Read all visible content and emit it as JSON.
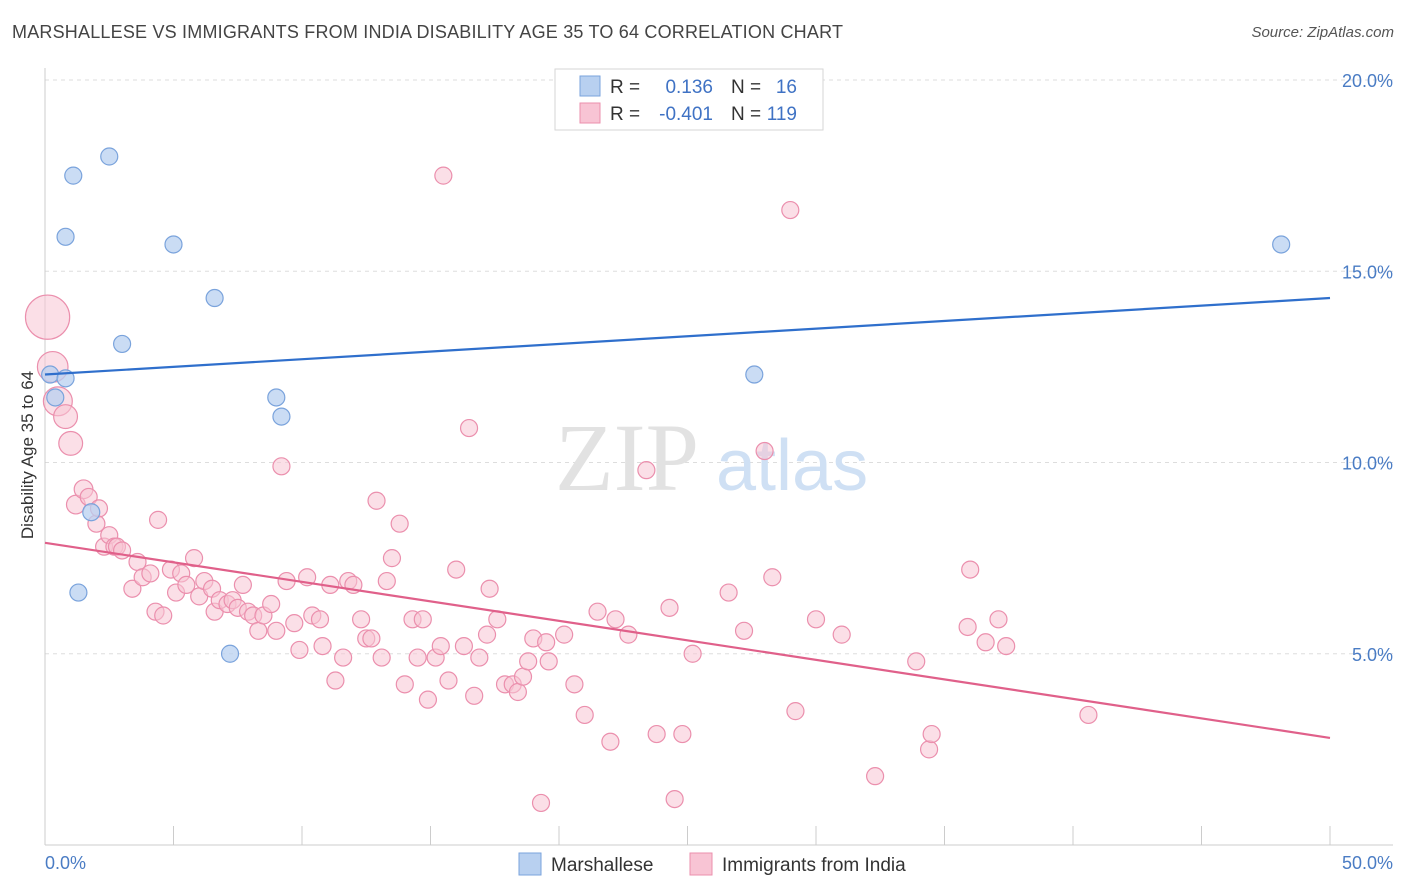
{
  "title": "MARSHALLESE VS IMMIGRANTS FROM INDIA DISABILITY AGE 35 TO 64 CORRELATION CHART",
  "source": "Source: ZipAtlas.com",
  "watermark": {
    "zip": "ZIP",
    "atlas": "atlas"
  },
  "legend_top": [
    {
      "r_label": "R =",
      "r_value": "0.136",
      "n_label": "N =",
      "n_value": "16"
    },
    {
      "r_label": "R =",
      "r_value": "-0.401",
      "n_label": "N =",
      "n_value": "119"
    }
  ],
  "legend_bottom": [
    "Marshallese",
    "Immigrants from India"
  ],
  "colors": {
    "blue_fill": "#b8d0f0",
    "blue_stroke": "#7aa3dc",
    "blue_line": "#2f6fcc",
    "pink_fill": "#f8c4d4",
    "pink_stroke": "#eb8fad",
    "pink_line": "#e0608a",
    "grid": "#dddddd",
    "tick_text": "#4a7cc4"
  },
  "chart_data": {
    "type": "scatter",
    "xlabel": "",
    "ylabel": "Disability Age 35 to 64",
    "xlim": [
      0,
      50
    ],
    "ylim": [
      0,
      20
    ],
    "x_tick_labels": [
      "0.0%",
      "50.0%"
    ],
    "y_ticks": [
      5,
      10,
      15,
      20
    ],
    "y_tick_labels": [
      "5.0%",
      "10.0%",
      "15.0%",
      "20.0%"
    ],
    "grid": "horizontal dashed",
    "legend": "top-center",
    "series": [
      {
        "name": "Marshallese",
        "color": "#b8d0f0",
        "points": [
          [
            0.2,
            12.3,
            1
          ],
          [
            0.4,
            11.7,
            1
          ],
          [
            0.8,
            12.2,
            1
          ],
          [
            0.8,
            15.9,
            1
          ],
          [
            1.1,
            17.5,
            1
          ],
          [
            1.3,
            6.6,
            1
          ],
          [
            1.8,
            8.7,
            1
          ],
          [
            2.5,
            18.0,
            1
          ],
          [
            3.0,
            13.1,
            1
          ],
          [
            5.0,
            15.7,
            1
          ],
          [
            6.6,
            14.3,
            1
          ],
          [
            7.2,
            5.0,
            1
          ],
          [
            9.0,
            11.7,
            1
          ],
          [
            9.2,
            11.2,
            1
          ],
          [
            27.6,
            12.3,
            1
          ],
          [
            48.1,
            15.7,
            1
          ]
        ]
      },
      {
        "name": "Immigrants from India",
        "color": "#f8c4d4",
        "points": [
          [
            0.1,
            13.8,
            2.6
          ],
          [
            0.3,
            12.5,
            1.8
          ],
          [
            0.5,
            11.6,
            1.7
          ],
          [
            0.8,
            11.2,
            1.4
          ],
          [
            1.0,
            10.5,
            1.4
          ],
          [
            1.2,
            8.9,
            1.1
          ],
          [
            1.5,
            9.3,
            1.1
          ],
          [
            1.7,
            9.1,
            1
          ],
          [
            2.0,
            8.4,
            1
          ],
          [
            2.1,
            8.8,
            1
          ],
          [
            2.3,
            7.8,
            1
          ],
          [
            2.5,
            8.1,
            1
          ],
          [
            2.7,
            7.8,
            1
          ],
          [
            2.8,
            7.8,
            1
          ],
          [
            3.0,
            7.7,
            1
          ],
          [
            3.4,
            6.7,
            1
          ],
          [
            3.6,
            7.4,
            1
          ],
          [
            3.8,
            7.0,
            1
          ],
          [
            4.1,
            7.1,
            1
          ],
          [
            4.3,
            6.1,
            1
          ],
          [
            4.4,
            8.5,
            1
          ],
          [
            4.6,
            6.0,
            1
          ],
          [
            4.9,
            7.2,
            1
          ],
          [
            5.1,
            6.6,
            1
          ],
          [
            5.3,
            7.1,
            1
          ],
          [
            5.5,
            6.8,
            1
          ],
          [
            5.8,
            7.5,
            1
          ],
          [
            6.0,
            6.5,
            1
          ],
          [
            6.2,
            6.9,
            1
          ],
          [
            6.5,
            6.7,
            1
          ],
          [
            6.6,
            6.1,
            1
          ],
          [
            6.8,
            6.4,
            1
          ],
          [
            7.1,
            6.3,
            1
          ],
          [
            7.3,
            6.4,
            1
          ],
          [
            7.5,
            6.2,
            1
          ],
          [
            7.7,
            6.8,
            1
          ],
          [
            7.9,
            6.1,
            1
          ],
          [
            8.1,
            6.0,
            1
          ],
          [
            8.3,
            5.6,
            1
          ],
          [
            8.5,
            6.0,
            1
          ],
          [
            8.8,
            6.3,
            1
          ],
          [
            9.0,
            5.6,
            1
          ],
          [
            9.2,
            9.9,
            1
          ],
          [
            9.4,
            6.9,
            1
          ],
          [
            9.7,
            5.8,
            1
          ],
          [
            9.9,
            5.1,
            1
          ],
          [
            10.2,
            7.0,
            1
          ],
          [
            10.4,
            6.0,
            1
          ],
          [
            10.7,
            5.9,
            1
          ],
          [
            10.8,
            5.2,
            1
          ],
          [
            11.1,
            6.8,
            1
          ],
          [
            11.3,
            4.3,
            1
          ],
          [
            11.6,
            4.9,
            1
          ],
          [
            11.8,
            6.9,
            1
          ],
          [
            12.0,
            6.8,
            1
          ],
          [
            12.3,
            5.9,
            1
          ],
          [
            12.5,
            5.4,
            1
          ],
          [
            12.7,
            5.4,
            1
          ],
          [
            12.9,
            9.0,
            1
          ],
          [
            13.1,
            4.9,
            1
          ],
          [
            13.3,
            6.9,
            1
          ],
          [
            13.5,
            7.5,
            1
          ],
          [
            13.8,
            8.4,
            1
          ],
          [
            14.0,
            4.2,
            1
          ],
          [
            14.3,
            5.9,
            1
          ],
          [
            14.5,
            4.9,
            1
          ],
          [
            14.7,
            5.9,
            1
          ],
          [
            14.9,
            3.8,
            1
          ],
          [
            15.2,
            4.9,
            1
          ],
          [
            15.4,
            5.2,
            1
          ],
          [
            15.5,
            17.5,
            1
          ],
          [
            15.7,
            4.3,
            1
          ],
          [
            16.0,
            7.2,
            1
          ],
          [
            16.3,
            5.2,
            1
          ],
          [
            16.5,
            10.9,
            1
          ],
          [
            16.7,
            3.9,
            1
          ],
          [
            16.9,
            4.9,
            1
          ],
          [
            17.2,
            5.5,
            1
          ],
          [
            17.3,
            6.7,
            1
          ],
          [
            17.6,
            5.9,
            1
          ],
          [
            17.9,
            4.2,
            1
          ],
          [
            18.2,
            4.2,
            1
          ],
          [
            18.4,
            4.0,
            1
          ],
          [
            18.6,
            4.4,
            1
          ],
          [
            18.8,
            4.8,
            1
          ],
          [
            19.0,
            5.4,
            1
          ],
          [
            19.5,
            5.3,
            1
          ],
          [
            19.6,
            4.8,
            1
          ],
          [
            19.3,
            1.1,
            1
          ],
          [
            20.2,
            5.5,
            1
          ],
          [
            20.6,
            4.2,
            1
          ],
          [
            21.0,
            3.4,
            1
          ],
          [
            21.5,
            6.1,
            1
          ],
          [
            22.0,
            2.7,
            1
          ],
          [
            22.2,
            5.9,
            1
          ],
          [
            22.7,
            5.5,
            1
          ],
          [
            23.4,
            9.8,
            1
          ],
          [
            23.8,
            2.9,
            1
          ],
          [
            24.3,
            6.2,
            1
          ],
          [
            24.5,
            1.2,
            1
          ],
          [
            24.8,
            2.9,
            1
          ],
          [
            25.2,
            5.0,
            1
          ],
          [
            26.6,
            6.6,
            1
          ],
          [
            27.2,
            5.6,
            1
          ],
          [
            28.0,
            10.3,
            1
          ],
          [
            28.3,
            7.0,
            1
          ],
          [
            29.0,
            16.6,
            1
          ],
          [
            29.2,
            3.5,
            1
          ],
          [
            30.0,
            5.9,
            1
          ],
          [
            31.0,
            5.5,
            1
          ],
          [
            32.3,
            1.8,
            1
          ],
          [
            33.9,
            4.8,
            1
          ],
          [
            34.4,
            2.5,
            1
          ],
          [
            34.5,
            2.9,
            1
          ],
          [
            35.9,
            5.7,
            1
          ],
          [
            36.0,
            7.2,
            1
          ],
          [
            36.6,
            5.3,
            1
          ],
          [
            37.1,
            5.9,
            1
          ],
          [
            37.4,
            5.2,
            1
          ],
          [
            40.6,
            3.4,
            1
          ]
        ]
      }
    ],
    "trendlines": [
      {
        "series": "Marshallese",
        "x": [
          0,
          50
        ],
        "y": [
          12.3,
          14.3
        ]
      },
      {
        "series": "Immigrants from India",
        "x": [
          0,
          50
        ],
        "y": [
          7.9,
          2.8
        ]
      }
    ]
  }
}
